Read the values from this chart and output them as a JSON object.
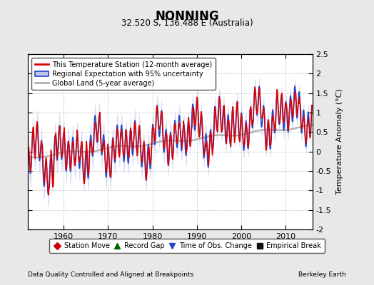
{
  "title": "NONNING",
  "subtitle": "32.520 S, 136.488 E (Australia)",
  "ylabel": "Temperature Anomaly (°C)",
  "xlabel_left": "Data Quality Controlled and Aligned at Breakpoints",
  "xlabel_right": "Berkeley Earth",
  "ylim": [
    -2.0,
    2.5
  ],
  "xlim": [
    1952,
    2016
  ],
  "xticks": [
    1960,
    1970,
    1980,
    1990,
    2000,
    2010
  ],
  "yticks": [
    -2,
    -1.5,
    -1,
    -0.5,
    0,
    0.5,
    1,
    1.5,
    2,
    2.5
  ],
  "bg_color": "#e8e8e8",
  "plot_bg_color": "#ffffff",
  "red_color": "#dd0000",
  "blue_color": "#2244cc",
  "blue_shade_color": "#c0c8ee",
  "gray_color": "#b0b0b0",
  "legend1_labels": [
    "This Temperature Station (12-month average)",
    "Regional Expectation with 95% uncertainty",
    "Global Land (5-year average)"
  ],
  "legend2_labels": [
    "Station Move",
    "Record Gap",
    "Time of Obs. Change",
    "Empirical Break"
  ],
  "seed": 12345,
  "start_year": 1952.0,
  "end_year": 2015.9,
  "n_months": 768
}
